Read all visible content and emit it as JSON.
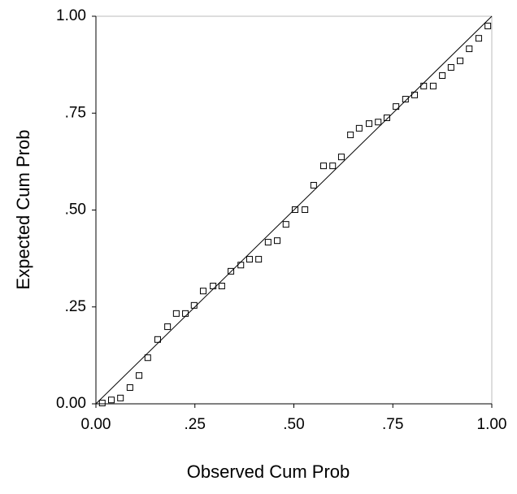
{
  "chart_data": {
    "type": "scatter",
    "x_label": "Observed Cum Prob",
    "y_label": "Expected Cum Prob",
    "x": [
      0.016,
      0.039,
      0.062,
      0.086,
      0.109,
      0.131,
      0.156,
      0.181,
      0.203,
      0.226,
      0.248,
      0.271,
      0.296,
      0.318,
      0.341,
      0.366,
      0.388,
      0.411,
      0.435,
      0.458,
      0.48,
      0.503,
      0.528,
      0.55,
      0.575,
      0.598,
      0.62,
      0.643,
      0.665,
      0.69,
      0.713,
      0.735,
      0.758,
      0.782,
      0.805,
      0.828,
      0.852,
      0.875,
      0.897,
      0.92,
      0.943,
      0.967,
      0.99
    ],
    "values": [
      0.002,
      0.01,
      0.015,
      0.042,
      0.073,
      0.119,
      0.166,
      0.199,
      0.233,
      0.233,
      0.254,
      0.291,
      0.304,
      0.304,
      0.342,
      0.358,
      0.373,
      0.373,
      0.417,
      0.421,
      0.463,
      0.501,
      0.501,
      0.564,
      0.614,
      0.614,
      0.637,
      0.694,
      0.711,
      0.723,
      0.727,
      0.738,
      0.767,
      0.786,
      0.797,
      0.82,
      0.82,
      0.847,
      0.868,
      0.885,
      0.916,
      0.943,
      0.975
    ],
    "color": "#000000",
    "xlim": [
      0,
      1
    ],
    "ylim": [
      0,
      1
    ],
    "xticks": [
      {
        "value": 0,
        "label": "0.00"
      },
      {
        "value": 0.25,
        "label": ".25"
      },
      {
        "value": 0.5,
        "label": ".50"
      },
      {
        "value": 0.75,
        "label": ".75"
      },
      {
        "value": 1,
        "label": "1.00"
      }
    ],
    "yticks": [
      {
        "value": 0,
        "label": "0.00"
      },
      {
        "value": 0.25,
        "label": ".25"
      },
      {
        "value": 0.5,
        "label": ".50"
      },
      {
        "value": 0.75,
        "label": ".75"
      },
      {
        "value": 1,
        "label": "1.00"
      }
    ]
  }
}
